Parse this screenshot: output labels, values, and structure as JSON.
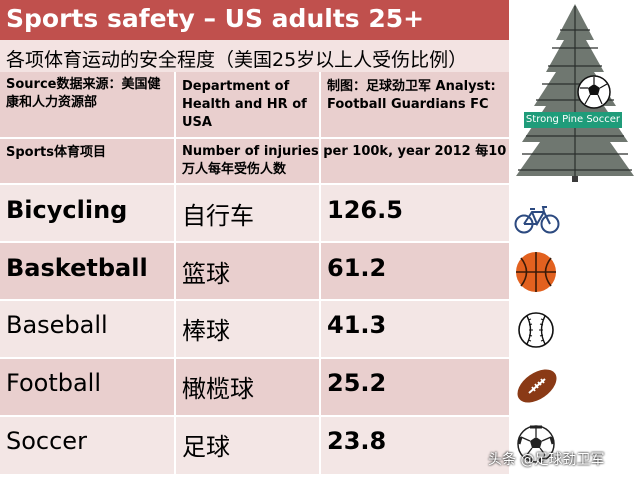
{
  "title": "Sports safety – US adults 25+",
  "subtitle": "各项体育运动的安全程度（美国25岁以上人受伤比例）",
  "header": {
    "source_label": "Source数据来源：美国健康和人力资源部",
    "source_value": "Department of Health and HR of USA",
    "credit": "制图：足球劲卫军 Analyst: Football Guardians FC",
    "col_sport": "Sports体育项目",
    "col_metric": "Number of injuries per 100k, year 2012 每10万人每年受伤人数"
  },
  "rows": [
    {
      "en": "Bicycling",
      "zh": "自行车",
      "value": "126.5",
      "icon": "bicycle-icon"
    },
    {
      "en": "Basketball",
      "zh": "篮球",
      "value": "61.2",
      "icon": "basketball-icon"
    },
    {
      "en": "Baseball",
      "zh": "棒球",
      "value": "41.3",
      "icon": "baseball-icon"
    },
    {
      "en": "Football",
      "zh": "橄榄球",
      "value": "25.2",
      "icon": "american-football-icon"
    },
    {
      "en": "Soccer",
      "zh": "足球",
      "value": "23.8",
      "icon": "soccer-ball-icon"
    }
  ],
  "brand": {
    "label": "Strong Pine Soccer",
    "icon": "pine-tree-logo"
  },
  "watermark": "头条 @足球劲卫军",
  "colors": {
    "title_bg": "#c0504d",
    "row_dark": "#e9cfce",
    "row_light": "#f3e6e5",
    "brand_green": "#1f9c7a"
  }
}
